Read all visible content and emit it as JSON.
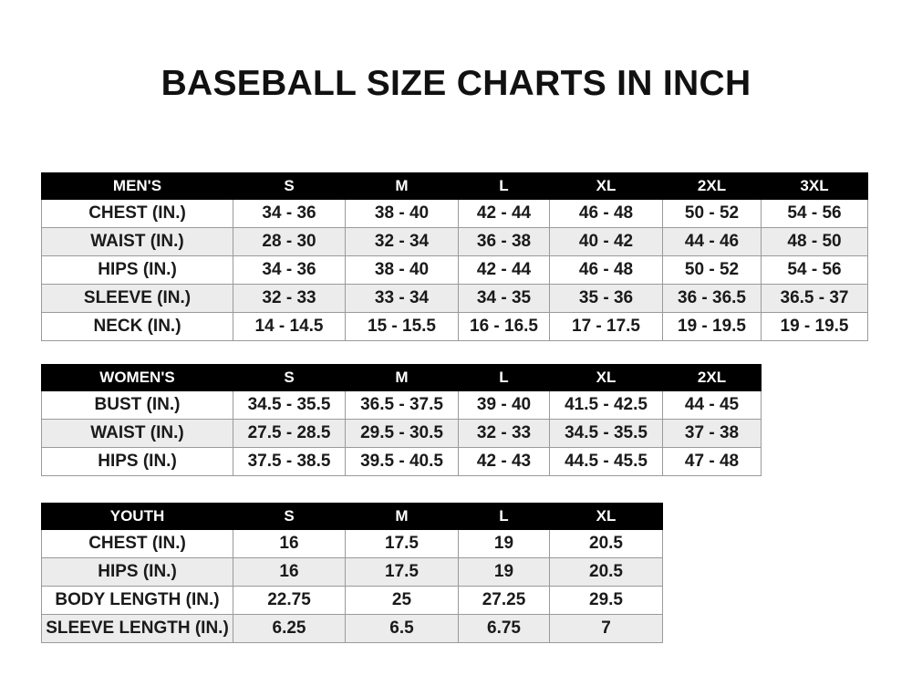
{
  "title": "BASEBALL SIZE CHARTS IN INCH",
  "tables": {
    "men": {
      "headers": [
        "MEN'S",
        "S",
        "M",
        "L",
        "XL",
        "2XL",
        "3XL"
      ],
      "rows": [
        [
          "CHEST (IN.)",
          "34 - 36",
          "38 - 40",
          "42 - 44",
          "46 - 48",
          "50 - 52",
          "54 - 56"
        ],
        [
          "WAIST (IN.)",
          "28 - 30",
          "32 - 34",
          "36 - 38",
          "40 - 42",
          "44 - 46",
          "48 - 50"
        ],
        [
          "HIPS (IN.)",
          "34 - 36",
          "38 - 40",
          "42 - 44",
          "46 - 48",
          "50 - 52",
          "54 - 56"
        ],
        [
          "SLEEVE (IN.)",
          "32 - 33",
          "33 - 34",
          "34 - 35",
          "35 - 36",
          "36 - 36.5",
          "36.5 - 37"
        ],
        [
          "NECK (IN.)",
          "14 - 14.5",
          "15 - 15.5",
          "16 - 16.5",
          "17 - 17.5",
          "19 - 19.5",
          "19 - 19.5"
        ]
      ]
    },
    "women": {
      "headers": [
        "WOMEN'S",
        "S",
        "M",
        "L",
        "XL",
        "2XL"
      ],
      "rows": [
        [
          "BUST (IN.)",
          "34.5 - 35.5",
          "36.5 - 37.5",
          "39 - 40",
          "41.5 - 42.5",
          "44 - 45"
        ],
        [
          "WAIST (IN.)",
          "27.5 - 28.5",
          "29.5 - 30.5",
          "32 - 33",
          "34.5 - 35.5",
          "37 - 38"
        ],
        [
          "HIPS (IN.)",
          "37.5 - 38.5",
          "39.5 - 40.5",
          "42 - 43",
          "44.5 - 45.5",
          "47 - 48"
        ]
      ]
    },
    "youth": {
      "headers": [
        "YOUTH",
        "S",
        "M",
        "L",
        "XL"
      ],
      "rows": [
        [
          "CHEST (IN.)",
          "16",
          "17.5",
          "19",
          "20.5"
        ],
        [
          "HIPS (IN.)",
          "16",
          "17.5",
          "19",
          "20.5"
        ],
        [
          "BODY LENGTH (IN.)",
          "22.75",
          "25",
          "27.25",
          "29.5"
        ],
        [
          "SLEEVE LENGTH (IN.)",
          "6.25",
          "6.5",
          "6.75",
          "7"
        ]
      ]
    }
  }
}
